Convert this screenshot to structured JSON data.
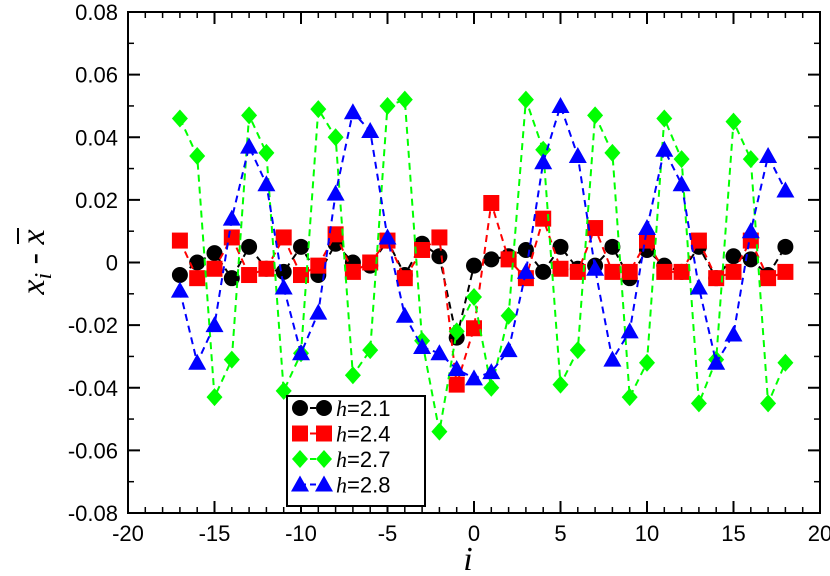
{
  "chart_data": {
    "type": "line",
    "xlabel": "i",
    "ylabel": "x_i - x̄",
    "xlim": [
      -20,
      20
    ],
    "ylim": [
      -0.08,
      0.08
    ],
    "x_ticks": [
      -20,
      -15,
      -10,
      -5,
      0,
      5,
      10,
      15,
      20
    ],
    "y_ticks": [
      -0.08,
      -0.06,
      -0.04,
      -0.02,
      0,
      0.02,
      0.04,
      0.06,
      0.08
    ],
    "x_tick_labels": [
      "-20",
      "-15",
      "-10",
      "-5",
      "0",
      "5",
      "10",
      "15",
      "20"
    ],
    "y_tick_labels": [
      "-0.08",
      "-0.06",
      "-0.04",
      "-0.02",
      "0",
      "0.02",
      "0.04",
      "0.06",
      "0.08"
    ],
    "grid": false,
    "legend_position": "bottom-left-center",
    "x": [
      -17,
      -16,
      -15,
      -14,
      -13,
      -12,
      -11,
      -10,
      -9,
      -8,
      -7,
      -6,
      -5,
      -4,
      -3,
      -2,
      -1,
      0,
      1,
      2,
      3,
      4,
      5,
      6,
      7,
      8,
      9,
      10,
      11,
      12,
      13,
      14,
      15,
      16,
      17,
      18
    ],
    "series": [
      {
        "name": "h=2.1",
        "legend_var": "h",
        "legend_value": "=2.1",
        "color": "#000000",
        "marker": "circle",
        "values": [
          -0.004,
          0.0,
          0.003,
          -0.005,
          0.005,
          -0.002,
          -0.003,
          0.005,
          -0.004,
          0.006,
          0.0,
          -0.001,
          0.007,
          -0.004,
          0.006,
          0.002,
          -0.024,
          -0.001,
          0.001,
          0.002,
          0.004,
          -0.003,
          0.005,
          -0.002,
          -0.001,
          0.005,
          -0.005,
          0.004,
          -0.001,
          -0.003,
          0.005,
          -0.005,
          0.002,
          0.001,
          -0.004,
          0.005
        ]
      },
      {
        "name": "h=2.4",
        "legend_var": "h",
        "legend_value": "=2.4",
        "color": "#ff0000",
        "marker": "square",
        "values": [
          0.007,
          -0.005,
          -0.002,
          0.008,
          -0.004,
          -0.002,
          0.008,
          -0.004,
          -0.001,
          0.009,
          -0.003,
          0.0,
          0.007,
          -0.005,
          0.004,
          0.008,
          -0.039,
          -0.021,
          0.019,
          0.001,
          -0.005,
          0.014,
          -0.002,
          -0.003,
          0.011,
          -0.003,
          -0.003,
          0.007,
          -0.003,
          -0.003,
          0.007,
          -0.005,
          -0.003,
          0.007,
          -0.005,
          -0.003
        ]
      },
      {
        "name": "h=2.7",
        "legend_var": "h",
        "legend_value": "=2.7",
        "color": "#00ff00",
        "marker": "diamond",
        "values": [
          0.046,
          0.034,
          -0.043,
          -0.031,
          0.047,
          0.035,
          -0.041,
          -0.029,
          0.049,
          0.04,
          -0.036,
          -0.028,
          0.05,
          0.052,
          -0.025,
          -0.054,
          -0.022,
          -0.011,
          -0.04,
          -0.017,
          0.052,
          0.036,
          -0.039,
          -0.028,
          0.047,
          0.035,
          -0.043,
          -0.032,
          0.046,
          0.033,
          -0.045,
          -0.031,
          0.045,
          0.033,
          -0.045,
          -0.032
        ]
      },
      {
        "name": "h=2.8",
        "legend_var": "h",
        "legend_value": "=2.8",
        "color": "#0000ff",
        "marker": "triangle",
        "values": [
          -0.009,
          -0.032,
          -0.02,
          0.014,
          0.037,
          0.025,
          -0.008,
          -0.029,
          -0.016,
          0.022,
          0.048,
          0.042,
          0.008,
          -0.017,
          -0.027,
          -0.029,
          -0.034,
          -0.037,
          -0.035,
          -0.028,
          -0.003,
          0.032,
          0.05,
          0.034,
          -0.002,
          -0.031,
          -0.022,
          0.011,
          0.036,
          0.025,
          -0.008,
          -0.032,
          -0.023,
          0.01,
          0.034,
          0.023
        ]
      }
    ]
  }
}
